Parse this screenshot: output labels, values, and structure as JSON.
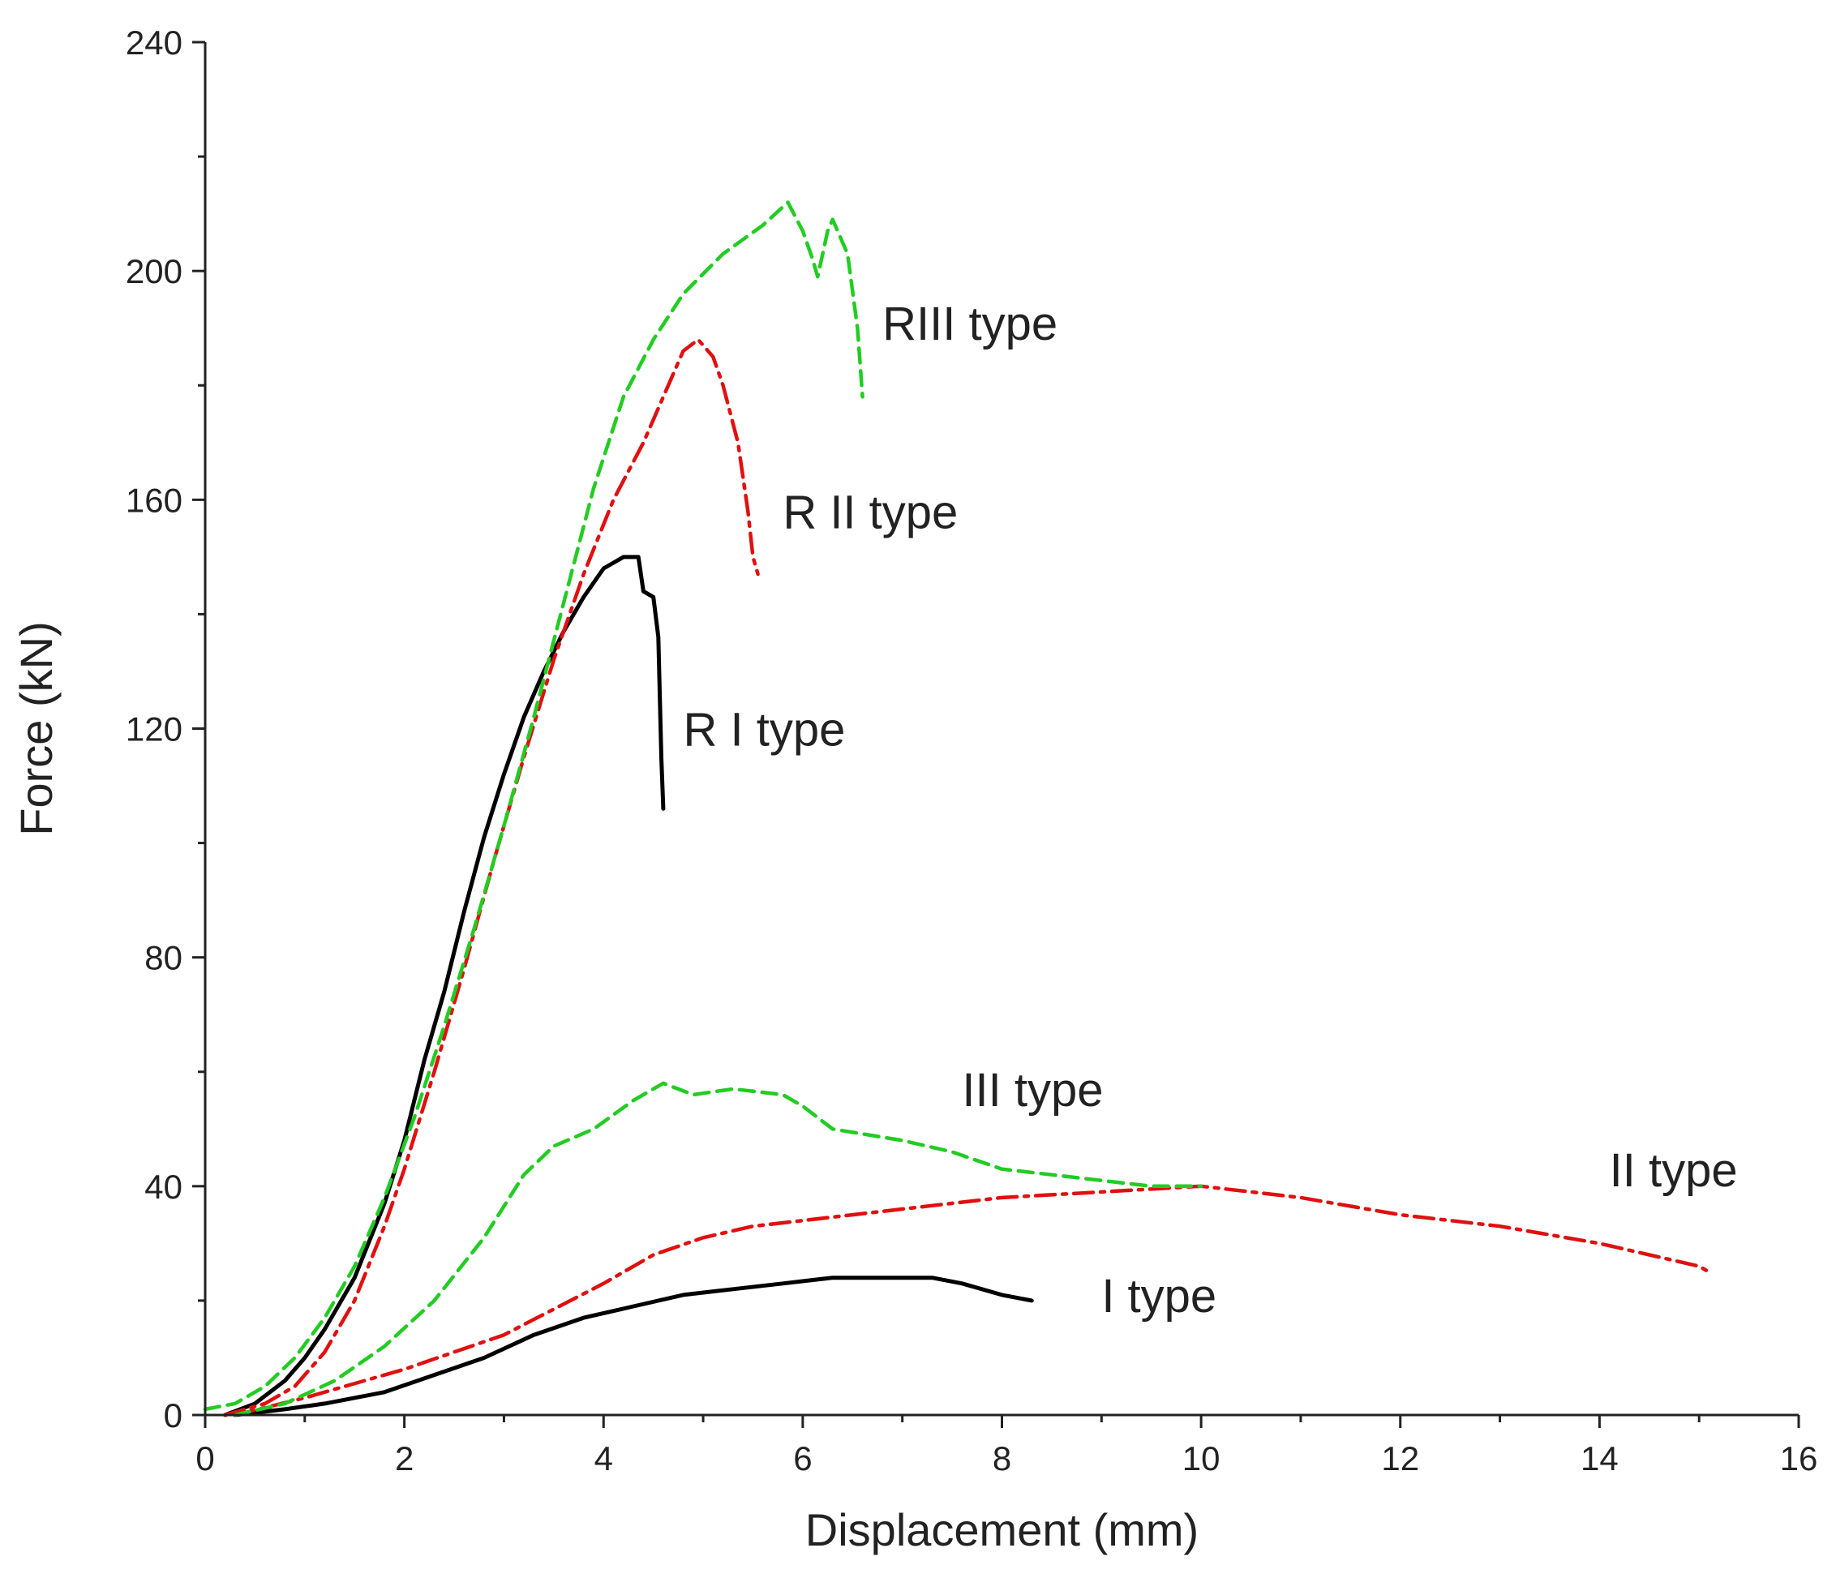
{
  "chart_data": {
    "type": "line",
    "title": "",
    "xlabel": "Displacement  (mm)",
    "ylabel": "Force  (kN)",
    "xlim": [
      0,
      16
    ],
    "ylim": [
      0,
      240
    ],
    "x_ticks": [
      0,
      2,
      4,
      6,
      8,
      10,
      12,
      14,
      16
    ],
    "y_ticks": [
      0,
      40,
      80,
      120,
      160,
      200,
      240
    ],
    "grid": false,
    "series": [
      {
        "name": "R I type",
        "color": "#000000",
        "style": "solid",
        "points": [
          [
            0.2,
            0
          ],
          [
            0.5,
            2
          ],
          [
            0.8,
            6
          ],
          [
            1.0,
            10
          ],
          [
            1.2,
            15
          ],
          [
            1.5,
            24
          ],
          [
            1.8,
            37
          ],
          [
            2.0,
            48
          ],
          [
            2.2,
            62
          ],
          [
            2.4,
            74
          ],
          [
            2.6,
            88
          ],
          [
            2.8,
            101
          ],
          [
            3.0,
            112
          ],
          [
            3.2,
            122
          ],
          [
            3.4,
            130
          ],
          [
            3.6,
            137
          ],
          [
            3.8,
            143
          ],
          [
            4.0,
            148
          ],
          [
            4.2,
            150
          ],
          [
            4.35,
            150
          ],
          [
            4.4,
            144
          ],
          [
            4.5,
            143
          ],
          [
            4.55,
            136
          ],
          [
            4.58,
            115
          ],
          [
            4.6,
            106
          ]
        ]
      },
      {
        "name": "R II type",
        "color": "#e01010",
        "style": "dashdot",
        "points": [
          [
            0.2,
            0
          ],
          [
            0.6,
            2
          ],
          [
            0.9,
            5
          ],
          [
            1.2,
            11
          ],
          [
            1.5,
            20
          ],
          [
            1.8,
            33
          ],
          [
            2.0,
            43
          ],
          [
            2.3,
            60
          ],
          [
            2.6,
            78
          ],
          [
            2.9,
            97
          ],
          [
            3.2,
            115
          ],
          [
            3.5,
            132
          ],
          [
            3.8,
            147
          ],
          [
            4.1,
            160
          ],
          [
            4.4,
            170
          ],
          [
            4.6,
            178
          ],
          [
            4.7,
            182
          ],
          [
            4.8,
            186
          ],
          [
            4.95,
            188
          ],
          [
            5.1,
            185
          ],
          [
            5.2,
            180
          ],
          [
            5.35,
            170
          ],
          [
            5.45,
            158
          ],
          [
            5.5,
            150
          ],
          [
            5.55,
            147
          ]
        ]
      },
      {
        "name": "RIII type",
        "color": "#22cc22",
        "style": "dashed",
        "points": [
          [
            0,
            1
          ],
          [
            0.3,
            2
          ],
          [
            0.6,
            5
          ],
          [
            0.9,
            10
          ],
          [
            1.2,
            17
          ],
          [
            1.5,
            26
          ],
          [
            1.8,
            38
          ],
          [
            2.1,
            52
          ],
          [
            2.4,
            68
          ],
          [
            2.7,
            85
          ],
          [
            3.0,
            103
          ],
          [
            3.3,
            122
          ],
          [
            3.6,
            142
          ],
          [
            3.9,
            162
          ],
          [
            4.2,
            178
          ],
          [
            4.5,
            188
          ],
          [
            4.8,
            196
          ],
          [
            5.2,
            203
          ],
          [
            5.6,
            208
          ],
          [
            5.85,
            212
          ],
          [
            6.0,
            207
          ],
          [
            6.1,
            202
          ],
          [
            6.15,
            199
          ],
          [
            6.25,
            207
          ],
          [
            6.3,
            209
          ],
          [
            6.45,
            203
          ],
          [
            6.55,
            190
          ],
          [
            6.6,
            178
          ]
        ]
      },
      {
        "name": "I type",
        "color": "#000000",
        "style": "solid",
        "points": [
          [
            0.3,
            0
          ],
          [
            0.8,
            1
          ],
          [
            1.2,
            2
          ],
          [
            1.8,
            4
          ],
          [
            2.3,
            7
          ],
          [
            2.8,
            10
          ],
          [
            3.3,
            14
          ],
          [
            3.8,
            17
          ],
          [
            4.3,
            19
          ],
          [
            4.8,
            21
          ],
          [
            5.3,
            22
          ],
          [
            5.8,
            23
          ],
          [
            6.3,
            24
          ],
          [
            6.8,
            24
          ],
          [
            7.3,
            24
          ],
          [
            7.6,
            23
          ],
          [
            8.0,
            21
          ],
          [
            8.3,
            20
          ]
        ]
      },
      {
        "name": "II type",
        "color": "#e01010",
        "style": "dashdot",
        "points": [
          [
            0.3,
            0
          ],
          [
            1.0,
            3
          ],
          [
            2.0,
            8
          ],
          [
            3.0,
            14
          ],
          [
            4.0,
            23
          ],
          [
            4.5,
            28
          ],
          [
            5.0,
            31
          ],
          [
            5.5,
            33
          ],
          [
            6.0,
            34
          ],
          [
            7.0,
            36
          ],
          [
            8.0,
            38
          ],
          [
            9.0,
            39
          ],
          [
            10.0,
            40
          ],
          [
            11.0,
            38
          ],
          [
            12.0,
            35
          ],
          [
            13.0,
            33
          ],
          [
            14.0,
            30
          ],
          [
            14.5,
            28
          ],
          [
            15.0,
            26
          ],
          [
            15.1,
            25
          ]
        ]
      },
      {
        "name": "III type",
        "color": "#22cc22",
        "style": "dashed",
        "points": [
          [
            0.3,
            0
          ],
          [
            0.8,
            2
          ],
          [
            1.3,
            6
          ],
          [
            1.8,
            12
          ],
          [
            2.3,
            20
          ],
          [
            2.8,
            31
          ],
          [
            3.2,
            42
          ],
          [
            3.5,
            47
          ],
          [
            3.9,
            50
          ],
          [
            4.3,
            55
          ],
          [
            4.6,
            58
          ],
          [
            4.9,
            56
          ],
          [
            5.3,
            57
          ],
          [
            5.8,
            56
          ],
          [
            6.0,
            54
          ],
          [
            6.3,
            50
          ],
          [
            7.0,
            48
          ],
          [
            7.5,
            46
          ],
          [
            8.0,
            43
          ],
          [
            8.5,
            42
          ],
          [
            9.0,
            41
          ],
          [
            9.5,
            40
          ],
          [
            10.0,
            40
          ]
        ]
      }
    ],
    "annotations": [
      {
        "text": "RIII type",
        "x": 6.8,
        "y": 188
      },
      {
        "text": "R II type",
        "x": 5.8,
        "y": 155
      },
      {
        "text": "R I type",
        "x": 4.8,
        "y": 117
      },
      {
        "text": "III type",
        "x": 7.6,
        "y": 54
      },
      {
        "text": "II type",
        "x": 14.1,
        "y": 40
      },
      {
        "text": "I type",
        "x": 9.0,
        "y": 18
      }
    ]
  }
}
